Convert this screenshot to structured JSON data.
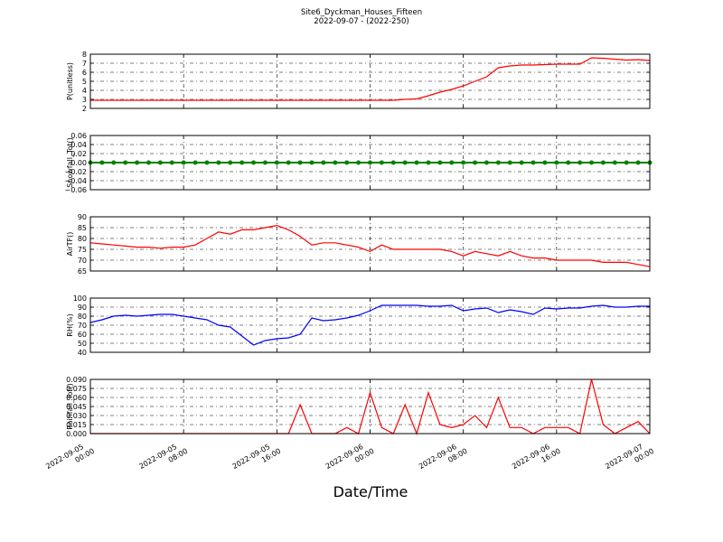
{
  "chart_data": [
    {
      "type": "line",
      "title": "Site6_Dyckman_Houses_Fifteen",
      "subtitle": "2022-09-07 - (2022-250)",
      "ylabel": "P(unitless)",
      "x": [
        "2022-09-05 00:00",
        "2022-09-05 01:00",
        "2022-09-05 02:00",
        "2022-09-05 03:00",
        "2022-09-05 04:00",
        "2022-09-05 05:00",
        "2022-09-05 06:00",
        "2022-09-05 07:00",
        "2022-09-05 08:00",
        "2022-09-05 09:00",
        "2022-09-05 10:00",
        "2022-09-05 11:00",
        "2022-09-05 12:00",
        "2022-09-05 13:00",
        "2022-09-05 14:00",
        "2022-09-05 15:00",
        "2022-09-05 16:00",
        "2022-09-05 17:00",
        "2022-09-05 18:00",
        "2022-09-05 19:00",
        "2022-09-05 20:00",
        "2022-09-05 21:00",
        "2022-09-05 22:00",
        "2022-09-05 23:00",
        "2022-09-06 00:00",
        "2022-09-06 01:00",
        "2022-09-06 02:00",
        "2022-09-06 03:00",
        "2022-09-06 04:00",
        "2022-09-06 05:00",
        "2022-09-06 06:00",
        "2022-09-06 07:00",
        "2022-09-06 08:00",
        "2022-09-06 09:00",
        "2022-09-06 10:00",
        "2022-09-06 11:00",
        "2022-09-06 12:00",
        "2022-09-06 13:00",
        "2022-09-06 14:00",
        "2022-09-06 15:00",
        "2022-09-06 16:00",
        "2022-09-06 17:00",
        "2022-09-06 18:00",
        "2022-09-06 19:00",
        "2022-09-06 20:00",
        "2022-09-06 21:00",
        "2022-09-06 22:00",
        "2022-09-06 23:00",
        "2022-09-07 00:00"
      ],
      "values": [
        2.9,
        2.9,
        2.9,
        2.9,
        2.9,
        2.9,
        2.9,
        2.9,
        2.9,
        2.9,
        2.9,
        2.9,
        2.9,
        2.9,
        2.9,
        2.9,
        2.9,
        2.9,
        2.9,
        2.9,
        2.9,
        2.9,
        2.9,
        2.9,
        2.9,
        2.9,
        2.9,
        3.0,
        3.05,
        3.4,
        3.8,
        4.1,
        4.5,
        5.0,
        5.5,
        6.5,
        6.7,
        6.8,
        6.8,
        6.85,
        6.9,
        6.9,
        6.9,
        7.6,
        7.55,
        7.45,
        7.35,
        7.4,
        7.3
      ],
      "color": "#ff0000",
      "xlim": [
        "2022-09-05 00:00",
        "2022-09-07 00:00"
      ],
      "ylim": [
        2,
        8
      ],
      "yticks": [
        2,
        3,
        4,
        5,
        6,
        7,
        8
      ],
      "grid": true
    },
    {
      "type": "line",
      "ylabel": "Snowfall_Tot()",
      "x": [
        "2022-09-05 00:00",
        "2022-09-05 01:00",
        "2022-09-05 02:00",
        "2022-09-05 03:00",
        "2022-09-05 04:00",
        "2022-09-05 05:00",
        "2022-09-05 06:00",
        "2022-09-05 07:00",
        "2022-09-05 08:00",
        "2022-09-05 09:00",
        "2022-09-05 10:00",
        "2022-09-05 11:00",
        "2022-09-05 12:00",
        "2022-09-05 13:00",
        "2022-09-05 14:00",
        "2022-09-05 15:00",
        "2022-09-05 16:00",
        "2022-09-05 17:00",
        "2022-09-05 18:00",
        "2022-09-05 19:00",
        "2022-09-05 20:00",
        "2022-09-05 21:00",
        "2022-09-05 22:00",
        "2022-09-05 23:00",
        "2022-09-06 00:00",
        "2022-09-06 01:00",
        "2022-09-06 02:00",
        "2022-09-06 03:00",
        "2022-09-06 04:00",
        "2022-09-06 05:00",
        "2022-09-06 06:00",
        "2022-09-06 07:00",
        "2022-09-06 08:00",
        "2022-09-06 09:00",
        "2022-09-06 10:00",
        "2022-09-06 11:00",
        "2022-09-06 12:00",
        "2022-09-06 13:00",
        "2022-09-06 14:00",
        "2022-09-06 15:00",
        "2022-09-06 16:00",
        "2022-09-06 17:00",
        "2022-09-06 18:00",
        "2022-09-06 19:00",
        "2022-09-06 20:00",
        "2022-09-06 21:00",
        "2022-09-06 22:00",
        "2022-09-06 23:00",
        "2022-09-07 00:00"
      ],
      "values": [
        0,
        0,
        0,
        0,
        0,
        0,
        0,
        0,
        0,
        0,
        0,
        0,
        0,
        0,
        0,
        0,
        0,
        0,
        0,
        0,
        0,
        0,
        0,
        0,
        0,
        0,
        0,
        0,
        0,
        0,
        0,
        0,
        0,
        0,
        0,
        0,
        0,
        0,
        0,
        0,
        0,
        0,
        0,
        0,
        0,
        0,
        0,
        0,
        0
      ],
      "color": "#008000",
      "marker": true,
      "xlim": [
        "2022-09-05 00:00",
        "2022-09-07 00:00"
      ],
      "ylim": [
        -0.06,
        0.06
      ],
      "yticks": [
        {
          "value": -0.06,
          "label": "−0.06"
        },
        {
          "value": -0.04,
          "label": "−0.04"
        },
        {
          "value": -0.02,
          "label": "−0.02"
        },
        {
          "value": 0,
          "label": "0.00"
        },
        {
          "value": 0.02,
          "label": "0.02"
        },
        {
          "value": 0.04,
          "label": "0.04"
        },
        {
          "value": 0.06,
          "label": "0.06"
        }
      ],
      "grid": true
    },
    {
      "type": "line",
      "ylabel": "AirTF()",
      "x": [
        "2022-09-05 00:00",
        "2022-09-05 01:00",
        "2022-09-05 02:00",
        "2022-09-05 03:00",
        "2022-09-05 04:00",
        "2022-09-05 05:00",
        "2022-09-05 06:00",
        "2022-09-05 07:00",
        "2022-09-05 08:00",
        "2022-09-05 09:00",
        "2022-09-05 10:00",
        "2022-09-05 11:00",
        "2022-09-05 12:00",
        "2022-09-05 13:00",
        "2022-09-05 14:00",
        "2022-09-05 15:00",
        "2022-09-05 16:00",
        "2022-09-05 17:00",
        "2022-09-05 18:00",
        "2022-09-05 19:00",
        "2022-09-05 20:00",
        "2022-09-05 21:00",
        "2022-09-05 22:00",
        "2022-09-05 23:00",
        "2022-09-06 00:00",
        "2022-09-06 01:00",
        "2022-09-06 02:00",
        "2022-09-06 03:00",
        "2022-09-06 04:00",
        "2022-09-06 05:00",
        "2022-09-06 06:00",
        "2022-09-06 07:00",
        "2022-09-06 08:00",
        "2022-09-06 09:00",
        "2022-09-06 10:00",
        "2022-09-06 11:00",
        "2022-09-06 12:00",
        "2022-09-06 13:00",
        "2022-09-06 14:00",
        "2022-09-06 15:00",
        "2022-09-06 16:00",
        "2022-09-06 17:00",
        "2022-09-06 18:00",
        "2022-09-06 19:00",
        "2022-09-06 20:00",
        "2022-09-06 21:00",
        "2022-09-06 22:00",
        "2022-09-06 23:00",
        "2022-09-07 00:00"
      ],
      "values": [
        78,
        77.5,
        77,
        76.5,
        76,
        76,
        75.5,
        76,
        76,
        77,
        80,
        83,
        82,
        84,
        84,
        85,
        86,
        84,
        81,
        77,
        78,
        78,
        77,
        76,
        74,
        77,
        75,
        75,
        75,
        75,
        75,
        74,
        72,
        74,
        73,
        72,
        74,
        72,
        71,
        71,
        70,
        70,
        70,
        70,
        69,
        69,
        69,
        68,
        67
      ],
      "color": "#ff0000",
      "xlim": [
        "2022-09-05 00:00",
        "2022-09-07 00:00"
      ],
      "ylim": [
        65,
        90
      ],
      "yticks": [
        65,
        70,
        75,
        80,
        85,
        90
      ],
      "grid": true
    },
    {
      "type": "line",
      "ylabel": "RH(%)",
      "x": [
        "2022-09-05 00:00",
        "2022-09-05 01:00",
        "2022-09-05 02:00",
        "2022-09-05 03:00",
        "2022-09-05 04:00",
        "2022-09-05 05:00",
        "2022-09-05 06:00",
        "2022-09-05 07:00",
        "2022-09-05 08:00",
        "2022-09-05 09:00",
        "2022-09-05 10:00",
        "2022-09-05 11:00",
        "2022-09-05 12:00",
        "2022-09-05 13:00",
        "2022-09-05 14:00",
        "2022-09-05 15:00",
        "2022-09-05 16:00",
        "2022-09-05 17:00",
        "2022-09-05 18:00",
        "2022-09-05 19:00",
        "2022-09-05 20:00",
        "2022-09-05 21:00",
        "2022-09-05 22:00",
        "2022-09-05 23:00",
        "2022-09-06 00:00",
        "2022-09-06 01:00",
        "2022-09-06 02:00",
        "2022-09-06 03:00",
        "2022-09-06 04:00",
        "2022-09-06 05:00",
        "2022-09-06 06:00",
        "2022-09-06 07:00",
        "2022-09-06 08:00",
        "2022-09-06 09:00",
        "2022-09-06 10:00",
        "2022-09-06 11:00",
        "2022-09-06 12:00",
        "2022-09-06 13:00",
        "2022-09-06 14:00",
        "2022-09-06 15:00",
        "2022-09-06 16:00",
        "2022-09-06 17:00",
        "2022-09-06 18:00",
        "2022-09-06 19:00",
        "2022-09-06 20:00",
        "2022-09-06 21:00",
        "2022-09-06 22:00",
        "2022-09-06 23:00",
        "2022-09-07 00:00"
      ],
      "values": [
        73,
        76,
        80,
        81,
        80,
        81,
        82,
        82,
        80,
        78,
        76,
        70,
        68,
        58,
        48,
        53,
        55,
        56,
        60,
        78,
        75,
        76,
        78,
        81,
        86,
        92,
        92,
        92,
        92,
        91,
        91,
        92,
        86,
        88,
        89,
        84,
        87,
        85,
        82,
        89,
        88,
        89,
        89,
        91,
        92,
        90,
        90,
        91,
        91
      ],
      "color": "#0000ff",
      "xlim": [
        "2022-09-05 00:00",
        "2022-09-07 00:00"
      ],
      "ylim": [
        40,
        100
      ],
      "yticks": [
        40,
        50,
        60,
        70,
        80,
        90,
        100
      ],
      "grid": true
    },
    {
      "type": "line",
      "ylabel": "Rainfall_Tot()",
      "xlabel": "Date/Time",
      "x": [
        "2022-09-05 00:00",
        "2022-09-05 01:00",
        "2022-09-05 02:00",
        "2022-09-05 03:00",
        "2022-09-05 04:00",
        "2022-09-05 05:00",
        "2022-09-05 06:00",
        "2022-09-05 07:00",
        "2022-09-05 08:00",
        "2022-09-05 09:00",
        "2022-09-05 10:00",
        "2022-09-05 11:00",
        "2022-09-05 12:00",
        "2022-09-05 13:00",
        "2022-09-05 14:00",
        "2022-09-05 15:00",
        "2022-09-05 16:00",
        "2022-09-05 17:00",
        "2022-09-05 18:00",
        "2022-09-05 19:00",
        "2022-09-05 20:00",
        "2022-09-05 21:00",
        "2022-09-05 22:00",
        "2022-09-05 23:00",
        "2022-09-06 00:00",
        "2022-09-06 01:00",
        "2022-09-06 02:00",
        "2022-09-06 03:00",
        "2022-09-06 04:00",
        "2022-09-06 05:00",
        "2022-09-06 06:00",
        "2022-09-06 07:00",
        "2022-09-06 08:00",
        "2022-09-06 09:00",
        "2022-09-06 10:00",
        "2022-09-06 11:00",
        "2022-09-06 12:00",
        "2022-09-06 13:00",
        "2022-09-06 14:00",
        "2022-09-06 15:00",
        "2022-09-06 16:00",
        "2022-09-06 17:00",
        "2022-09-06 18:00",
        "2022-09-06 19:00",
        "2022-09-06 20:00",
        "2022-09-06 21:00",
        "2022-09-06 22:00",
        "2022-09-06 23:00",
        "2022-09-07 00:00"
      ],
      "values": [
        0,
        0,
        0,
        0,
        0,
        0,
        0,
        0,
        0,
        0,
        0,
        0,
        0,
        0,
        0,
        0,
        0,
        0,
        0.048,
        0,
        0,
        0,
        0.01,
        0,
        0.068,
        0.01,
        0,
        0.048,
        0,
        0.068,
        0.015,
        0.01,
        0.015,
        0.03,
        0.01,
        0.06,
        0.01,
        0.01,
        0,
        0.01,
        0.01,
        0.01,
        0,
        0.09,
        0.015,
        0,
        0.01,
        0.02,
        0
      ],
      "color": "#ff0000",
      "xlim": [
        "2022-09-05 00:00",
        "2022-09-07 00:00"
      ],
      "ylim": [
        0,
        0.09
      ],
      "yticks": [
        {
          "value": 0,
          "label": "0.000"
        },
        0.015,
        {
          "value": 0.03,
          "label": "0.030"
        },
        0.045,
        {
          "value": 0.06,
          "label": "0.060"
        },
        0.075,
        {
          "value": 0.09,
          "label": "0.090"
        }
      ],
      "xticks": [
        "2022-09-05 00:00",
        "2022-09-05 08:00",
        "2022-09-05 16:00",
        "2022-09-06 00:00",
        "2022-09-06 08:00",
        "2022-09-06 16:00",
        "2022-09-07 00:00"
      ],
      "grid": true
    }
  ]
}
